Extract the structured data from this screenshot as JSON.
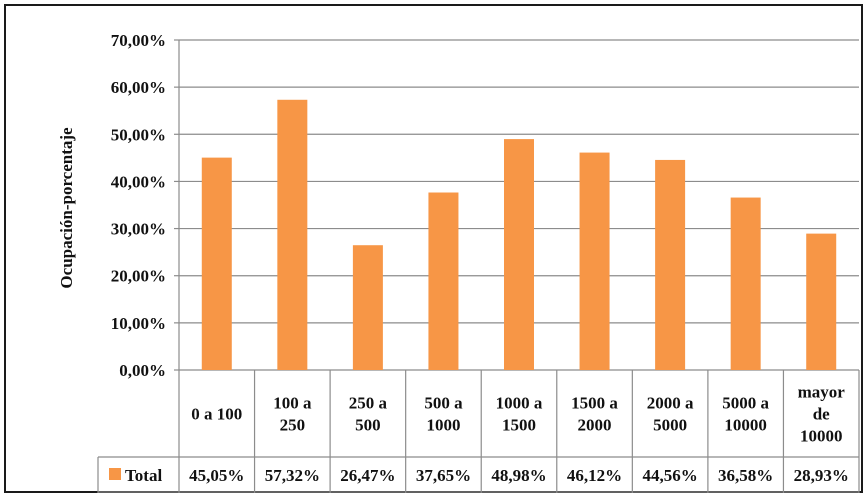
{
  "chart_data": {
    "type": "bar",
    "ylabel": "Ocupación-porcentaje",
    "ylim": [
      0,
      70
    ],
    "yticks": [
      "0,00%",
      "10,00%",
      "20,00%",
      "30,00%",
      "40,00%",
      "50,00%",
      "60,00%",
      "70,00%"
    ],
    "ytick_values": [
      0,
      10,
      20,
      30,
      40,
      50,
      60,
      70
    ],
    "grid": true,
    "bar_color": "#F79646",
    "categories": [
      [
        "0 a 100"
      ],
      [
        "100 a",
        "250"
      ],
      [
        "250 a",
        "500"
      ],
      [
        "500 a",
        "1000"
      ],
      [
        "1000 a",
        "1500"
      ],
      [
        "1500 a",
        "2000"
      ],
      [
        "2000 a",
        "5000"
      ],
      [
        "5000 a",
        "10000"
      ],
      [
        "mayor",
        "de",
        "10000"
      ]
    ],
    "series": [
      {
        "name": "Total",
        "values": [
          45.05,
          57.32,
          26.47,
          37.65,
          48.98,
          46.12,
          44.56,
          36.58,
          28.93
        ],
        "labels": [
          "45,05%",
          "57,32%",
          "26,47%",
          "37,65%",
          "48,98%",
          "46,12%",
          "44,56%",
          "36,58%",
          "28,93%"
        ]
      }
    ],
    "legend": "data-table"
  }
}
